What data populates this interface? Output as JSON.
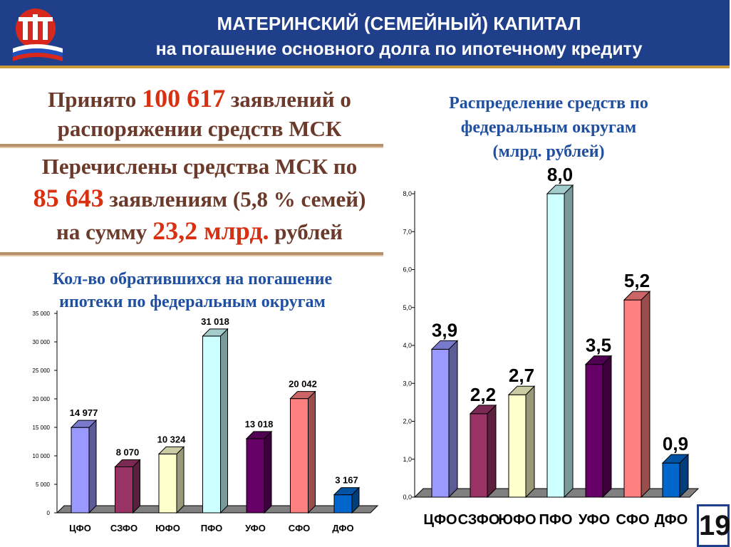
{
  "header": {
    "title": "МАТЕРИНСКИЙ (СЕМЕЙНЫЙ) КАПИТАЛ",
    "subtitle": "на погашение основного долга по ипотечному кредиту"
  },
  "info": {
    "accepted_prefix": "Принято ",
    "accepted_number": "100 617",
    "accepted_suffix": " заявлений о",
    "accepted_line2": "распоряжении средств МСК",
    "transferred_line1": "Перечислены средства МСК по",
    "transferred_number": "85 643",
    "transferred_suffix": " заявлениям (5,8 % семей)",
    "sum_prefix": "на сумму ",
    "sum_value": "23,2 млрд.",
    "sum_suffix": " рублей"
  },
  "left_heading": {
    "line1": "Кол-во обратившихся на погашение",
    "line2": "ипотеки по федеральным округам"
  },
  "right_heading": {
    "line1": "Распределение средств по",
    "line2": "федеральным округам",
    "line3": "(млрд. рублей)"
  },
  "page_number": "19",
  "chart_data": [
    {
      "type": "bar",
      "title": "Кол-во обратившихся на погашение ипотеки по федеральным округам",
      "categories": [
        "ЦФО",
        "СЗФО",
        "ЮФО",
        "ПФО",
        "УФО",
        "СФО",
        "ДФО"
      ],
      "values": [
        14977,
        8070,
        10324,
        31018,
        13018,
        20042,
        3167
      ],
      "data_labels": [
        "14 977",
        "8 070",
        "10 324",
        "31 018",
        "13 018",
        "20 042",
        "3 167"
      ],
      "ylim": [
        0,
        35000
      ],
      "ticks": [
        "0",
        "5 000",
        "10 000",
        "15 000",
        "20 000",
        "25 000",
        "30 000",
        "35 000"
      ],
      "colors": [
        "#9999ff",
        "#993366",
        "#ffffcc",
        "#ccffff",
        "#660066",
        "#ff8080",
        "#0066cc"
      ]
    },
    {
      "type": "bar",
      "title": "Распределение средств по федеральным округам (млрд. рублей)",
      "categories": [
        "ЦФО",
        "СЗФО",
        "ЮФО",
        "ПФО",
        "УФО",
        "СФО",
        "ДФО"
      ],
      "values": [
        3.9,
        2.2,
        2.7,
        8.0,
        3.5,
        5.2,
        0.9
      ],
      "data_labels": [
        "3,9",
        "2,2",
        "2,7",
        "8,0",
        "3,5",
        "5,2",
        "0,9"
      ],
      "ylim": [
        0,
        8
      ],
      "ticks": [
        "0,0",
        "1,0",
        "2,0",
        "3,0",
        "4,0",
        "5,0",
        "6,0",
        "7,0",
        "8,0"
      ],
      "colors": [
        "#9999ff",
        "#993366",
        "#ffffcc",
        "#ccffff",
        "#660066",
        "#ff8080",
        "#0066cc"
      ]
    }
  ]
}
